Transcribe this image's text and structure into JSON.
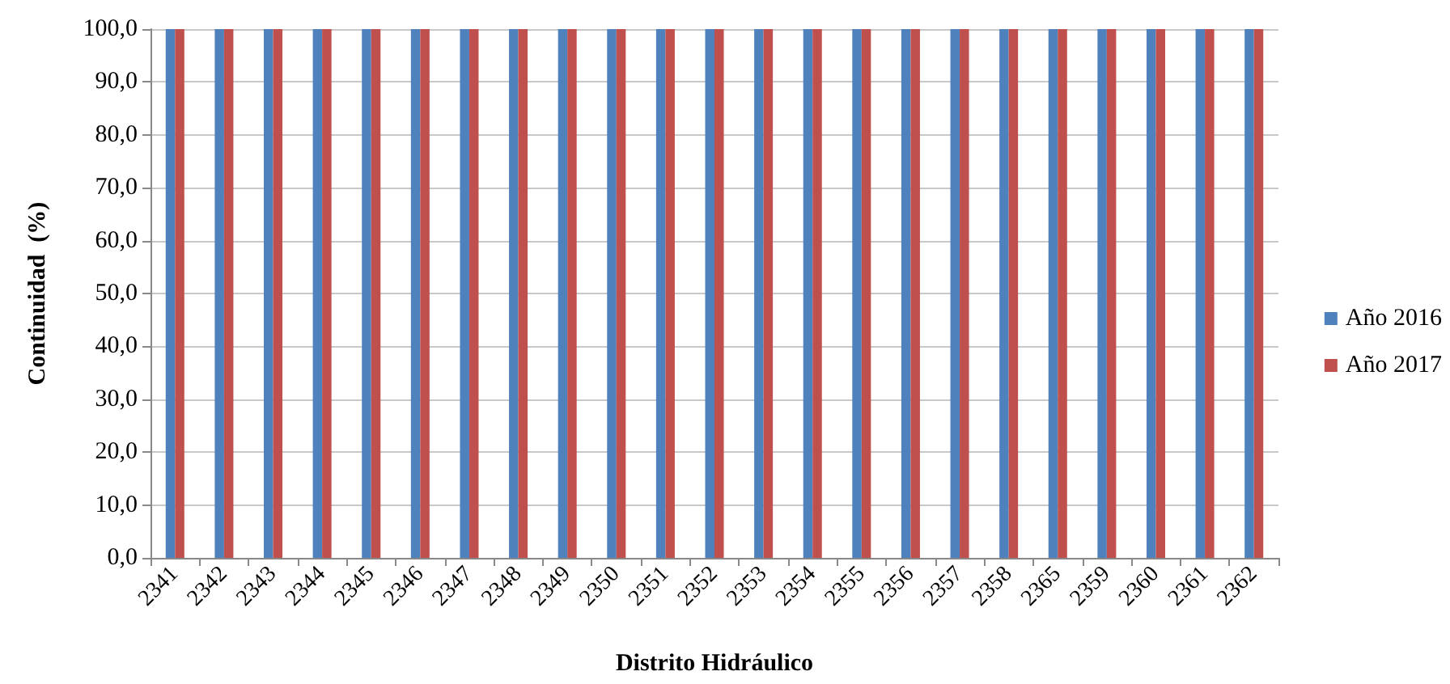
{
  "chart_data": {
    "type": "bar",
    "xlabel": "Distrito Hidráulico",
    "ylabel": "Continuidad  (%)",
    "categories": [
      "2341",
      "2342",
      "2343",
      "2344",
      "2345",
      "2346",
      "2347",
      "2348",
      "2349",
      "2350",
      "2351",
      "2352",
      "2353",
      "2354",
      "2355",
      "2356",
      "2357",
      "2358",
      "2365",
      "2359",
      "2360",
      "2361",
      "2362"
    ],
    "series": [
      {
        "name": "Año 2016",
        "color": "#4f81bd",
        "values": [
          100,
          100,
          100,
          100,
          100,
          100,
          100,
          100,
          100,
          100,
          100,
          100,
          100,
          100,
          100,
          100,
          100,
          100,
          100,
          100,
          100,
          100,
          100
        ]
      },
      {
        "name": "Año 2017",
        "color": "#c0504d",
        "values": [
          100,
          100,
          100,
          100,
          100,
          100,
          100,
          100,
          100,
          100,
          100,
          100,
          100,
          100,
          100,
          100,
          100,
          100,
          100,
          100,
          100,
          100,
          100
        ]
      }
    ],
    "ylim": [
      0,
      100
    ],
    "yticks": [
      {
        "value": 0,
        "label": "0,0"
      },
      {
        "value": 10,
        "label": "10,0"
      },
      {
        "value": 20,
        "label": "20,0"
      },
      {
        "value": 30,
        "label": "30,0"
      },
      {
        "value": 40,
        "label": "40,0"
      },
      {
        "value": 50,
        "label": "50,0"
      },
      {
        "value": 60,
        "label": "60,0"
      },
      {
        "value": 70,
        "label": "70,0"
      },
      {
        "value": 80,
        "label": "80,0"
      },
      {
        "value": 90,
        "label": "90,0"
      },
      {
        "value": 100,
        "label": "100,0"
      }
    ],
    "grid": "y",
    "legend": "right"
  }
}
